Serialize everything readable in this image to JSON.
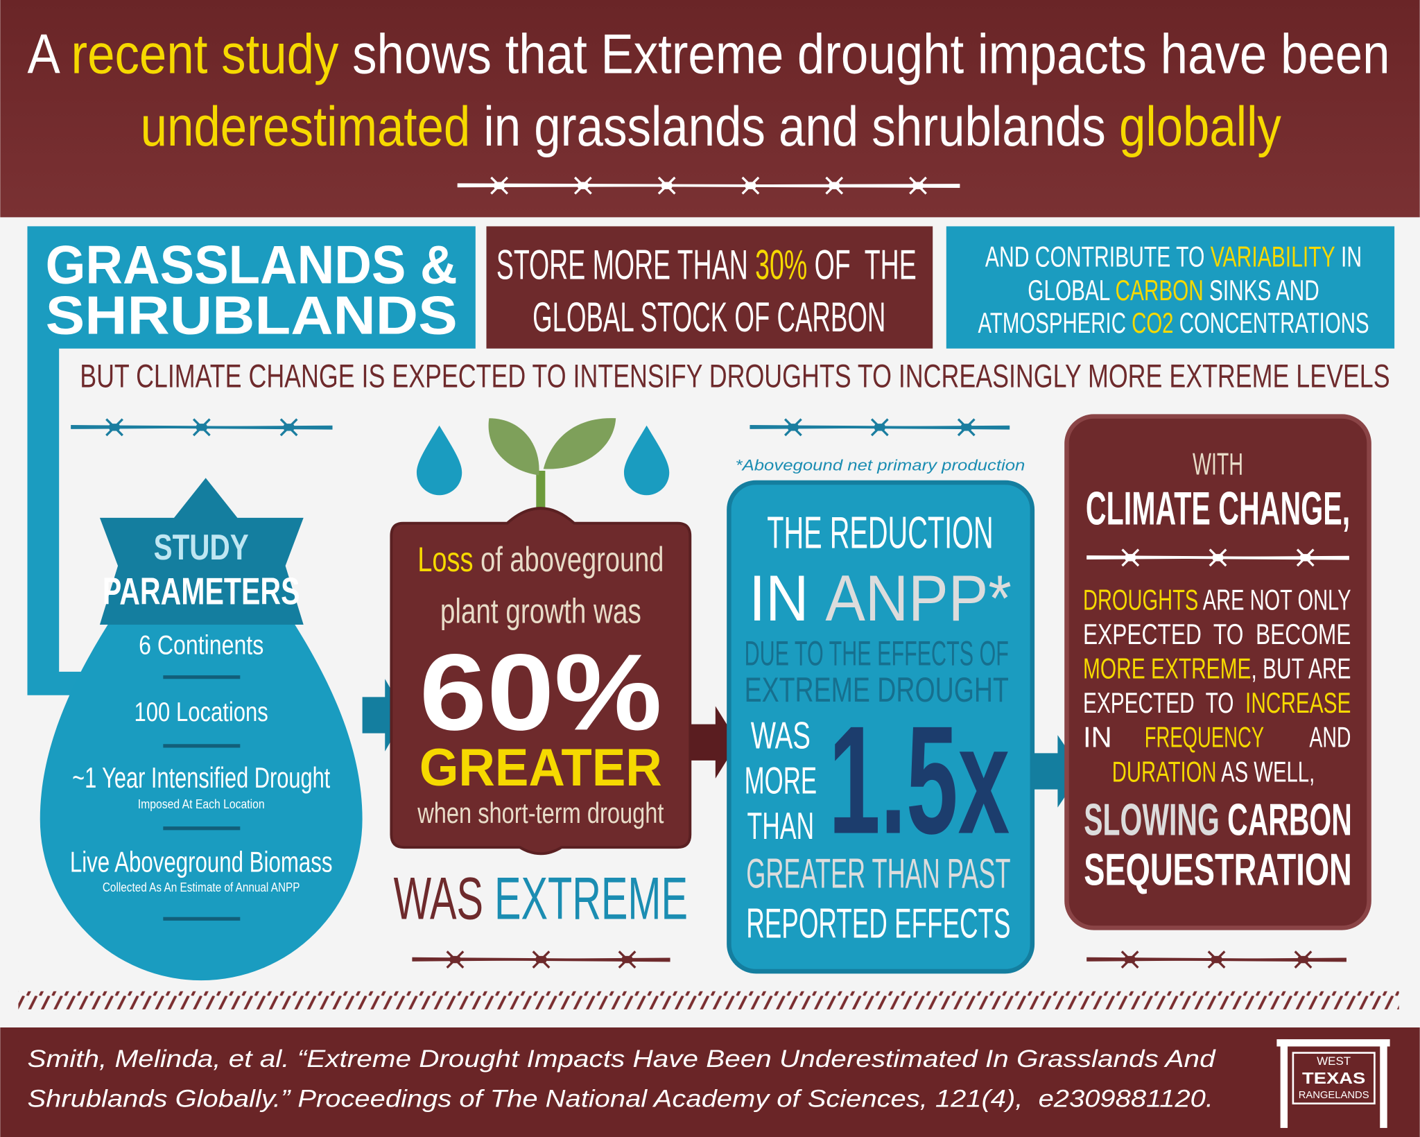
{
  "header": {
    "title": [
      [
        "A ",
        "recent study",
        " shows that Extreme drought impacts have been"
      ],
      [
        "underestimated",
        " in grasslands and shrublands ",
        "globally"
      ]
    ]
  },
  "grasslands": [
    "GRASSLANDS &",
    "SHRUBLANDS"
  ],
  "carbon_stock": [
    [
      "STORE MORE THAN ",
      "30%",
      " OF  THE"
    ],
    [
      "GLOBAL STOCK OF CARBON"
    ]
  ],
  "variability": [
    [
      "AND CONTRIBUTE TO ",
      "VARIABILITY",
      " IN"
    ],
    [
      "GLOBAL ",
      "CARBON",
      " SINKS AND"
    ],
    [
      "ATMOSPHERIC ",
      "CO2",
      " CONCENTRATIONS"
    ]
  ],
  "climate_line": "BUT CLIMATE CHANGE IS EXPECTED TO INTENSIFY DROUGHTS TO INCREASINGLY MORE EXTREME LEVELS",
  "study": {
    "title": [
      "STUDY",
      "PARAMETERS"
    ],
    "items": [
      {
        "label": "6 Continents"
      },
      {
        "label": "100 Locations"
      },
      {
        "label": "~1 Year Intensified Drought",
        "note": "Imposed At Each Location"
      },
      {
        "label": "Live Aboveground Biomass",
        "note": "Collected As An Estimate of Annual ANPP"
      }
    ]
  },
  "loss": {
    "lines": [
      [
        "Loss",
        " of aboveground"
      ],
      [
        "plant growth was"
      ]
    ],
    "figure": "60%",
    "emphasis": "GREATER",
    "condition": "when short-term drought",
    "footer": [
      "WAS ",
      "EXTREME"
    ]
  },
  "anpp": {
    "footnote": "*Abovegound net primary production",
    "heading": [
      "THE REDUCTION"
    ],
    "subject": [
      "IN ",
      "ANPP*"
    ],
    "cause": [
      "DUE TO THE EFFECTS OF",
      "EXTREME DROUGHT"
    ],
    "comparison": [
      "WAS",
      "MORE",
      "THAN"
    ],
    "figure": "1.5x",
    "tail": [
      "GREATER THAN PAST",
      "REPORTED EFFECTS"
    ]
  },
  "outlook": {
    "intro": "WITH",
    "heading": "CLIMATE CHANGE,",
    "body": [
      [
        "DROUGHTS",
        " ARE NOT ONLY"
      ],
      [
        "EXPECTED  TO  BECOME"
      ],
      [
        "MORE EXTREME",
        ", BUT ARE"
      ],
      [
        "EXPECTED  TO  ",
        "INCREASE"
      ],
      [
        "IN",
        "FREQUENCY",
        "AND"
      ],
      [
        "DURATION",
        " AS WELL,"
      ]
    ],
    "conclusion": [
      [
        "SLOWING",
        " CARBON"
      ],
      [
        "SEQUESTRATION"
      ]
    ]
  },
  "citation": [
    "Smith, Melinda, et al. “Extreme Drought Impacts Have Been Underestimated In Grasslands And",
    "Shrublands Globally.” Proceedings of The National Academy of Sciences, 121(4),  e2309881120."
  ],
  "logo": [
    "WEST",
    "TEXAS",
    "RANGELANDS"
  ]
}
